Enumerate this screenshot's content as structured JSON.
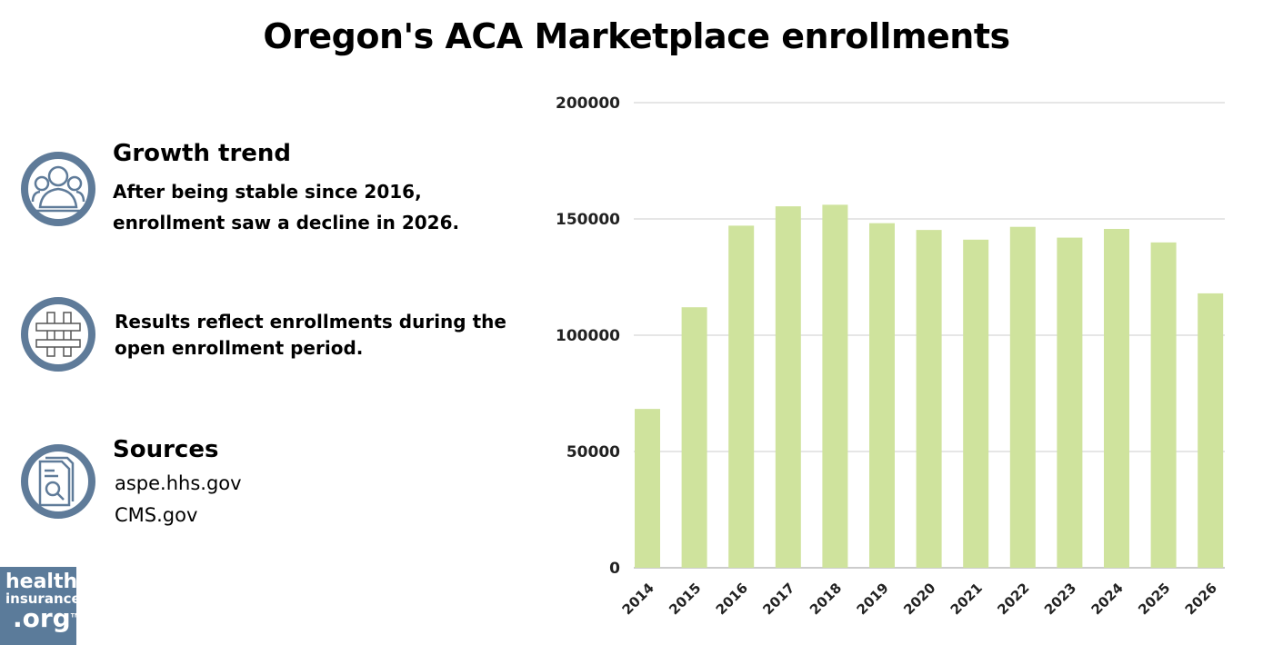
{
  "title": "Oregon's ACA Marketplace enrollments",
  "panels": {
    "growth": {
      "icon": "people-icon",
      "heading": "Growth trend",
      "text1": "After being stable since 2016,",
      "text2": "enrollment saw a decline in 2026."
    },
    "note": {
      "icon": "hashtag-icon",
      "text1": "Results reflect enrollments during the",
      "text2": "open enrollment period."
    },
    "sources": {
      "icon": "document-search-icon",
      "heading": "Sources",
      "items": [
        "aspe.hhs.gov",
        "CMS.gov"
      ]
    }
  },
  "logo": {
    "line1": "health",
    "line2": "insurance",
    "line3": ".org",
    "tm": "TM"
  },
  "colors": {
    "bar": "#cfe39d",
    "icon": "#5f7b99",
    "logo_bg": "#5b7b9a",
    "grid": "#cccccc"
  },
  "chart_data": {
    "type": "bar",
    "categories": [
      "2014",
      "2015",
      "2016",
      "2017",
      "2018",
      "2019",
      "2020",
      "2021",
      "2022",
      "2023",
      "2024",
      "2025",
      "2026"
    ],
    "values": [
      68308,
      112024,
      147109,
      155430,
      156105,
      148180,
      145264,
      141089,
      146602,
      141963,
      145708,
      139900,
      118000
    ],
    "ylim": [
      0,
      200000
    ],
    "yticks": [
      0,
      50000,
      100000,
      150000,
      200000
    ],
    "grid": true
  }
}
